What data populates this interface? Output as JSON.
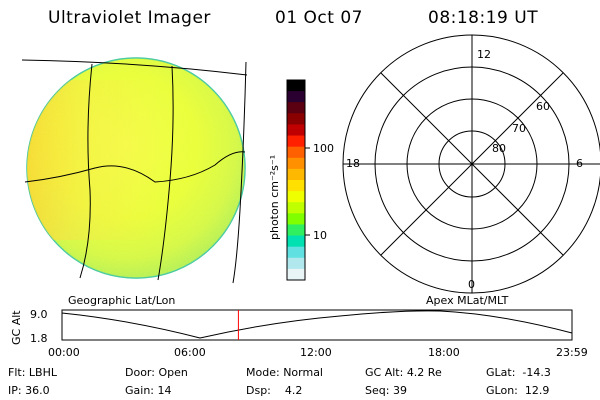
{
  "header": {
    "instrument": "Ultraviolet Imager",
    "date": "01 Oct 07",
    "time": "08:18:19 UT"
  },
  "colorbar": {
    "unit_label": "photon cm⁻²s⁻¹",
    "tick_labels": [
      "100",
      "10"
    ],
    "colors": [
      "#000000",
      "#2a0030",
      "#5a0010",
      "#8a0000",
      "#c00000",
      "#ff2000",
      "#ff6000",
      "#ff9000",
      "#ffb800",
      "#ffe000",
      "#f0ff00",
      "#c0ff00",
      "#80ff00",
      "#30f060",
      "#00e0b0",
      "#60e0e0",
      "#b0e8ee",
      "#e8f4f6"
    ]
  },
  "left_panel": {
    "label": "Geographic Lat/Lon"
  },
  "right_panel": {
    "label": "Apex MLat/MLT",
    "mlt_labels": {
      "top": "12",
      "left": "18",
      "right": "6",
      "bottom": "0"
    },
    "mlat_labels": [
      "60",
      "70",
      "80"
    ]
  },
  "timeline": {
    "ylabel": "GC Alt",
    "y_ticks": [
      "9.0",
      "1.8"
    ],
    "x_ticks": [
      "00:00",
      "06:00",
      "12:00",
      "18:00",
      "23:59"
    ],
    "current_marker_hours": 8.3,
    "marker_color": "#ff0000"
  },
  "info": {
    "row1": [
      {
        "label": "Flt:",
        "value": "LBHL"
      },
      {
        "label": "Door:",
        "value": "Open"
      },
      {
        "label": "Mode:",
        "value": "Normal"
      },
      {
        "label": "GC Alt:",
        "value": "4.2 Re"
      },
      {
        "label": "GLat:",
        "value": "-14.3"
      }
    ],
    "row2": [
      {
        "label": "IP:",
        "value": "36.0"
      },
      {
        "label": "Gain:",
        "value": "14"
      },
      {
        "label": "Dsp:",
        "value": "4.2"
      },
      {
        "label": "Seq:",
        "value": "39"
      },
      {
        "label": "GLon:",
        "value": "12.9"
      }
    ]
  }
}
